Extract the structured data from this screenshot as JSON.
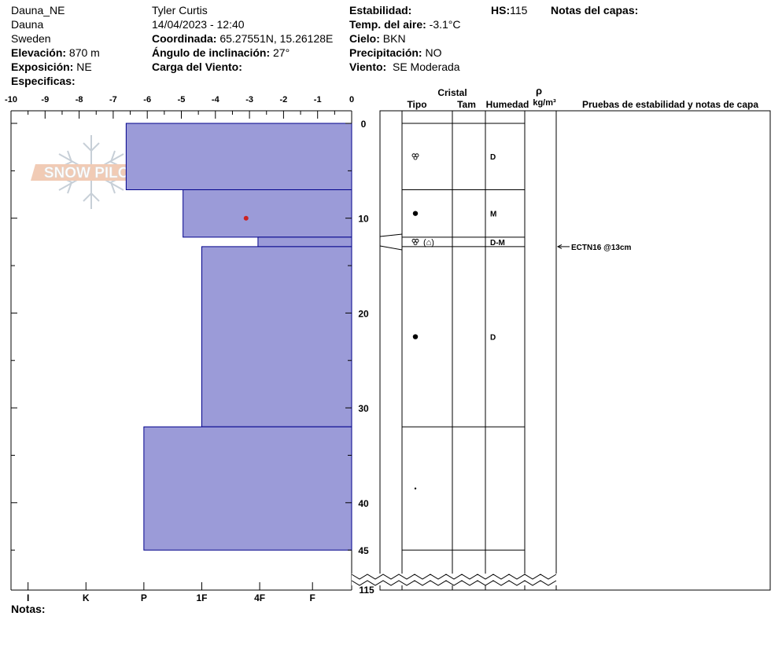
{
  "header": {
    "site": "Dauna_NE",
    "location": "Dauna",
    "country": "Sweden",
    "elevation_label": "Elevación:",
    "elevation": "870 m",
    "aspect_label": "Exposición:",
    "aspect": "NE",
    "specifics_label": "Especificas:",
    "observer": "Tyler Curtis",
    "datetime": "14/04/2023 - 12:40",
    "coord_label": "Coordinada:",
    "coord": "65.27551N, 15.26128E",
    "slope_label": "Ángulo de inclinación:",
    "slope": "27°",
    "wind_load_label": "Carga del Viento:",
    "stability_label": "Estabilidad:",
    "air_temp_label": "Temp. del aire:",
    "air_temp": "-3.1°C",
    "sky_label": "Cielo:",
    "sky": "BKN",
    "precip_label": "Precipitación:",
    "precip": "NO",
    "wind_label": "Viento:",
    "wind": "SE Moderada",
    "hs_label": "HS:",
    "hs": "115",
    "layer_notes_label": "Notas del capas:"
  },
  "notes_label": "Notas:",
  "logo_text": "SNOW PILOT",
  "columns": {
    "crystal": "Cristal",
    "type": "Tipo",
    "size": "Tam",
    "moisture": "Humedad",
    "density_symbol": "ρ",
    "density_unit": "kg/m³",
    "tests": "Pruebas de estabilidad y notas de capa"
  },
  "colors": {
    "layer_fill": "#9b9bd8",
    "layer_stroke": "#00008b",
    "temp_point": "#cc2222"
  },
  "chart_data": {
    "type": "bar",
    "temp_axis": {
      "ticks": [
        -10,
        -9,
        -8,
        -7,
        -6,
        -5,
        -4,
        -3,
        -2,
        -1,
        0
      ],
      "range": [
        -10,
        0
      ]
    },
    "hardness_axis": {
      "labels": [
        "I",
        "K",
        "P",
        "1F",
        "4F",
        "F"
      ],
      "positions": [
        -9.5,
        -7.8,
        -6.1,
        -4.4,
        -2.7,
        -1.15
      ]
    },
    "depth_axis": {
      "ticks": [
        0,
        10,
        20,
        30,
        40,
        45
      ],
      "bottom_label": "115",
      "range": [
        0,
        49
      ]
    },
    "layers": [
      {
        "top": 0,
        "bottom": 7,
        "hardness": -6.62,
        "grain": "faceted",
        "moisture": "D"
      },
      {
        "top": 7,
        "bottom": 12,
        "hardness": -4.95,
        "grain": "round",
        "moisture": "M"
      },
      {
        "top": 12,
        "bottom": 13,
        "hardness": -2.75,
        "grain": "faceted-mixed",
        "moisture": "D-M"
      },
      {
        "top": 13,
        "bottom": 32,
        "hardness": -4.4,
        "grain": "round",
        "moisture": "D"
      },
      {
        "top": 32,
        "bottom": 45,
        "hardness": -6.1,
        "grain": "dot",
        "moisture": ""
      }
    ],
    "temperatures": [
      {
        "depth": 10,
        "temp": -3.1
      }
    ],
    "stability_tests": [
      {
        "depth": 13,
        "label": "ECTN16 @13cm"
      }
    ],
    "grain_symbol_mixed": "(⌂)"
  }
}
